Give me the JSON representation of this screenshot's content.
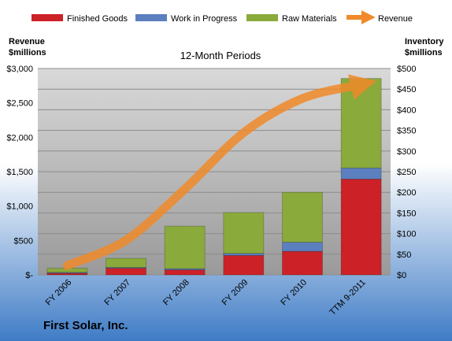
{
  "chart_data": {
    "type": "bar",
    "subtitle": "12-Month Periods",
    "company": "First Solar, Inc.",
    "categories": [
      "FY 2006",
      "FY 2007",
      "FY 2008",
      "FY 2009",
      "FY 2010",
      "TTM 9-2011"
    ],
    "series": [
      {
        "name": "Finished Goods",
        "axis": "right",
        "color": "#cc2127",
        "values": [
          4,
          16,
          12,
          47,
          57,
          232
        ]
      },
      {
        "name": "Work in Progress",
        "axis": "right",
        "color": "#5b7fbf",
        "values": [
          2,
          2,
          3,
          5,
          22,
          27
        ]
      },
      {
        "name": "Raw Materials",
        "axis": "right",
        "color": "#8aaa3c",
        "values": [
          10,
          22,
          103,
          99,
          121,
          217
        ]
      }
    ],
    "line": {
      "name": "Revenue",
      "axis": "left",
      "color": "#f08a2a",
      "values": [
        135,
        504,
        1246,
        2066,
        2564,
        2766
      ]
    },
    "left_axis": {
      "label_line1": "Revenue",
      "label_line2": "$millions",
      "ylim": [
        0,
        3000
      ],
      "ticks": [
        "$-",
        "$500",
        "$1,000",
        "$1,500",
        "$2,000",
        "$2,500",
        "$3,000"
      ]
    },
    "right_axis": {
      "label_line1": "Inventory",
      "label_line2": "$millions",
      "ylim": [
        0,
        500
      ],
      "ticks": [
        "$0",
        "$50",
        "$100",
        "$150",
        "$200",
        "$250",
        "$300",
        "$350",
        "$400",
        "$450",
        "$500"
      ]
    },
    "legend": [
      "Finished Goods",
      "Work in Progress",
      "Raw Materials",
      "Revenue"
    ],
    "legend_position": "top",
    "grid": true,
    "xlabel": "",
    "ylabel": ""
  }
}
